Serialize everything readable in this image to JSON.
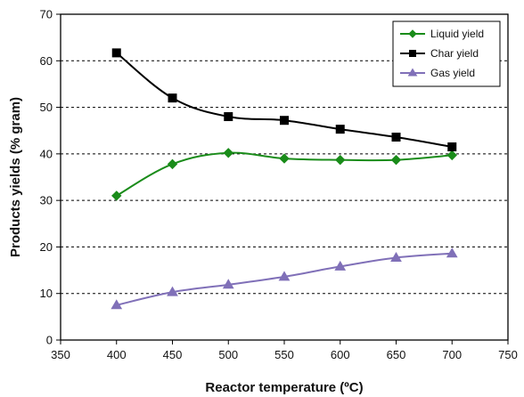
{
  "chart_data": {
    "type": "line",
    "xlabel": "Reactor temperature (ºC)",
    "ylabel": "Products yields (% gram)",
    "xlim": [
      350,
      750
    ],
    "ylim": [
      0,
      70
    ],
    "xticks": [
      350,
      400,
      450,
      500,
      550,
      600,
      650,
      700,
      750
    ],
    "yticks": [
      0,
      10,
      20,
      30,
      40,
      50,
      60,
      70
    ],
    "grid": "horizontal-dashed",
    "legend_position": "top-right",
    "x": [
      400,
      450,
      500,
      550,
      600,
      650,
      700
    ],
    "series": [
      {
        "name": "Liquid yield",
        "values": [
          31.0,
          37.8,
          40.2,
          39.0,
          38.7,
          38.7,
          39.7
        ],
        "color": "#1a8c1a",
        "marker": "diamond"
      },
      {
        "name": "Char yield",
        "values": [
          61.7,
          52.0,
          48.0,
          47.2,
          45.3,
          43.6,
          41.5
        ],
        "color": "#000000",
        "marker": "square"
      },
      {
        "name": "Gas yield",
        "values": [
          7.5,
          10.3,
          11.9,
          13.6,
          15.8,
          17.7,
          18.6
        ],
        "color": "#8070b8",
        "marker": "triangle"
      }
    ]
  }
}
